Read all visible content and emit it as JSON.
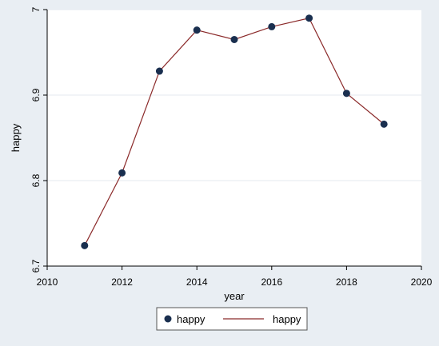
{
  "chart_data": {
    "type": "line",
    "xlabel": "year",
    "ylabel": "happy",
    "xlim": [
      2010,
      2020
    ],
    "ylim": [
      6.7,
      7.0
    ],
    "xticks": [
      2010,
      2012,
      2014,
      2016,
      2018,
      2020
    ],
    "yticks": [
      6.7,
      6.8,
      6.9,
      7.0
    ],
    "xtick_labels": [
      "2010",
      "2012",
      "2014",
      "2016",
      "2018",
      "2020"
    ],
    "ytick_labels": [
      "6.7",
      "6.8",
      "6.9",
      "7"
    ],
    "grid": "horizontal",
    "legend_position": "bottom",
    "x": [
      2011,
      2012,
      2013,
      2014,
      2015,
      2016,
      2017,
      2018,
      2019
    ],
    "series": [
      {
        "name": "happy",
        "style": "scatter",
        "color": "#1a2f4f",
        "values": [
          6.724,
          6.809,
          6.928,
          6.976,
          6.965,
          6.98,
          6.99,
          6.902,
          6.866
        ]
      },
      {
        "name": "happy",
        "style": "line",
        "color": "#8b2a2a",
        "values": [
          6.724,
          6.809,
          6.928,
          6.976,
          6.965,
          6.98,
          6.99,
          6.902,
          6.866
        ]
      }
    ]
  },
  "colors": {
    "figure_background": "#e9eef3",
    "plot_background": "#ffffff",
    "grid": "#e5eaef",
    "marker": "#1a2f4f",
    "line": "#8b2a2a"
  }
}
